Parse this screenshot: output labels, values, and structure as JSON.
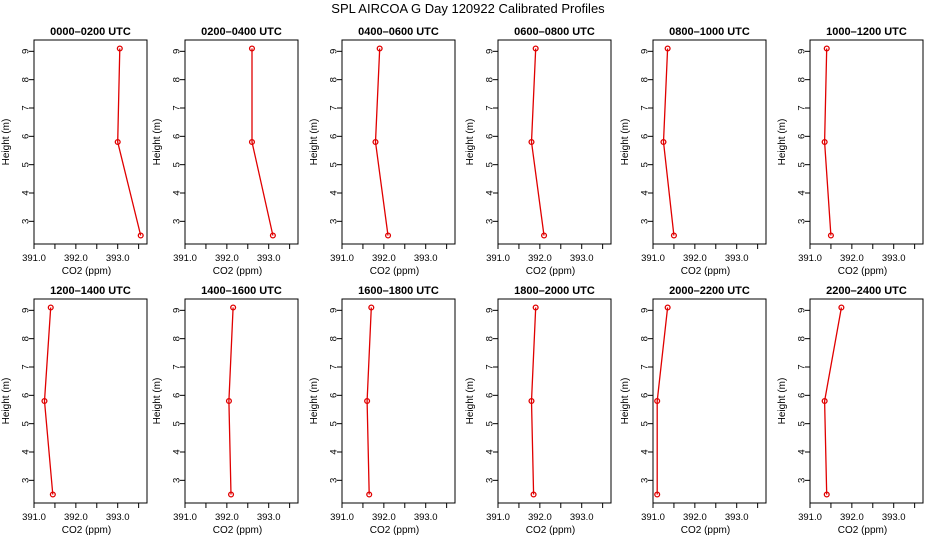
{
  "title": "SPL AIRCOA G  Day 120922  Calibrated Profiles",
  "colors": {
    "series": "#e00000",
    "axis": "#000000"
  },
  "chart_data": [
    {
      "type": "line",
      "title": "0000–0200 UTC",
      "xlabel": "CO2 (ppm)",
      "ylabel": "Height (m)",
      "xlim": [
        391.0,
        393.7
      ],
      "ylim": [
        2.2,
        9.4
      ],
      "xticks": [
        "391.0",
        "392.0",
        "393.0"
      ],
      "yticks": [
        "3",
        "4",
        "5",
        "6",
        "7",
        "8",
        "9"
      ],
      "points": [
        {
          "x": 393.05,
          "y": 9.1
        },
        {
          "x": 393.0,
          "y": 5.8
        },
        {
          "x": 393.55,
          "y": 2.5
        }
      ]
    },
    {
      "type": "line",
      "title": "0200–0400 UTC",
      "xlabel": "CO2 (ppm)",
      "ylabel": "Height (m)",
      "xlim": [
        391.0,
        393.7
      ],
      "ylim": [
        2.2,
        9.4
      ],
      "xticks": [
        "391.0",
        "392.0",
        "393.0"
      ],
      "yticks": [
        "3",
        "4",
        "5",
        "6",
        "7",
        "8",
        "9"
      ],
      "points": [
        {
          "x": 392.6,
          "y": 9.1
        },
        {
          "x": 392.6,
          "y": 5.8
        },
        {
          "x": 393.1,
          "y": 2.5
        }
      ]
    },
    {
      "type": "line",
      "title": "0400–0600 UTC",
      "xlabel": "CO2 (ppm)",
      "ylabel": "Height (m)",
      "xlim": [
        391.0,
        393.7
      ],
      "ylim": [
        2.2,
        9.4
      ],
      "xticks": [
        "391.0",
        "392.0",
        "393.0"
      ],
      "yticks": [
        "3",
        "4",
        "5",
        "6",
        "7",
        "8",
        "9"
      ],
      "points": [
        {
          "x": 391.9,
          "y": 9.1
        },
        {
          "x": 391.8,
          "y": 5.8
        },
        {
          "x": 392.1,
          "y": 2.5
        }
      ]
    },
    {
      "type": "line",
      "title": "0600–0800 UTC",
      "xlabel": "CO2 (ppm)",
      "ylabel": "Height (m)",
      "xlim": [
        391.0,
        393.7
      ],
      "ylim": [
        2.2,
        9.4
      ],
      "xticks": [
        "391.0",
        "392.0",
        "393.0"
      ],
      "yticks": [
        "3",
        "4",
        "5",
        "6",
        "7",
        "8",
        "9"
      ],
      "points": [
        {
          "x": 391.9,
          "y": 9.1
        },
        {
          "x": 391.8,
          "y": 5.8
        },
        {
          "x": 392.1,
          "y": 2.5
        }
      ]
    },
    {
      "type": "line",
      "title": "0800–1000 UTC",
      "xlabel": "CO2 (ppm)",
      "ylabel": "Height (m)",
      "xlim": [
        391.0,
        393.7
      ],
      "ylim": [
        2.2,
        9.4
      ],
      "xticks": [
        "391.0",
        "392.0",
        "393.0"
      ],
      "yticks": [
        "3",
        "4",
        "5",
        "6",
        "7",
        "8",
        "9"
      ],
      "points": [
        {
          "x": 391.35,
          "y": 9.1
        },
        {
          "x": 391.25,
          "y": 5.8
        },
        {
          "x": 391.5,
          "y": 2.5
        }
      ]
    },
    {
      "type": "line",
      "title": "1000–1200 UTC",
      "xlabel": "CO2 (ppm)",
      "ylabel": "Height (m)",
      "xlim": [
        391.0,
        393.7
      ],
      "ylim": [
        2.2,
        9.4
      ],
      "xticks": [
        "391.0",
        "392.0",
        "393.0"
      ],
      "yticks": [
        "3",
        "4",
        "5",
        "6",
        "7",
        "8",
        "9"
      ],
      "points": [
        {
          "x": 391.4,
          "y": 9.1
        },
        {
          "x": 391.35,
          "y": 5.8
        },
        {
          "x": 391.5,
          "y": 2.5
        }
      ]
    },
    {
      "type": "line",
      "title": "1200–1400 UTC",
      "xlabel": "CO2 (ppm)",
      "ylabel": "Height (m)",
      "xlim": [
        391.0,
        393.7
      ],
      "ylim": [
        2.2,
        9.4
      ],
      "xticks": [
        "391.0",
        "392.0",
        "393.0"
      ],
      "yticks": [
        "3",
        "4",
        "5",
        "6",
        "7",
        "8",
        "9"
      ],
      "points": [
        {
          "x": 391.4,
          "y": 9.1
        },
        {
          "x": 391.25,
          "y": 5.8
        },
        {
          "x": 391.45,
          "y": 2.5
        }
      ]
    },
    {
      "type": "line",
      "title": "1400–1600 UTC",
      "xlabel": "CO2 (ppm)",
      "ylabel": "Height (m)",
      "xlim": [
        391.0,
        393.7
      ],
      "ylim": [
        2.2,
        9.4
      ],
      "xticks": [
        "391.0",
        "392.0",
        "393.0"
      ],
      "yticks": [
        "3",
        "4",
        "5",
        "6",
        "7",
        "8",
        "9"
      ],
      "points": [
        {
          "x": 392.15,
          "y": 9.1
        },
        {
          "x": 392.05,
          "y": 5.8
        },
        {
          "x": 392.1,
          "y": 2.5
        }
      ]
    },
    {
      "type": "line",
      "title": "1600–1800 UTC",
      "xlabel": "CO2 (ppm)",
      "ylabel": "Height (m)",
      "xlim": [
        391.0,
        393.7
      ],
      "ylim": [
        2.2,
        9.4
      ],
      "xticks": [
        "391.0",
        "392.0",
        "393.0"
      ],
      "yticks": [
        "3",
        "4",
        "5",
        "6",
        "7",
        "8",
        "9"
      ],
      "points": [
        {
          "x": 391.7,
          "y": 9.1
        },
        {
          "x": 391.6,
          "y": 5.8
        },
        {
          "x": 391.65,
          "y": 2.5
        }
      ]
    },
    {
      "type": "line",
      "title": "1800–2000 UTC",
      "xlabel": "CO2 (ppm)",
      "ylabel": "Height (m)",
      "xlim": [
        391.0,
        393.7
      ],
      "ylim": [
        2.2,
        9.4
      ],
      "xticks": [
        "391.0",
        "392.0",
        "393.0"
      ],
      "yticks": [
        "3",
        "4",
        "5",
        "6",
        "7",
        "8",
        "9"
      ],
      "points": [
        {
          "x": 391.9,
          "y": 9.1
        },
        {
          "x": 391.8,
          "y": 5.8
        },
        {
          "x": 391.85,
          "y": 2.5
        }
      ]
    },
    {
      "type": "line",
      "title": "2000–2200 UTC",
      "xlabel": "CO2 (ppm)",
      "ylabel": "Height (m)",
      "xlim": [
        391.0,
        393.7
      ],
      "ylim": [
        2.2,
        9.4
      ],
      "xticks": [
        "391.0",
        "392.0",
        "393.0"
      ],
      "yticks": [
        "3",
        "4",
        "5",
        "6",
        "7",
        "8",
        "9"
      ],
      "points": [
        {
          "x": 391.35,
          "y": 9.1
        },
        {
          "x": 391.1,
          "y": 5.8
        },
        {
          "x": 391.1,
          "y": 2.5
        }
      ]
    },
    {
      "type": "line",
      "title": "2200–2400 UTC",
      "xlabel": "CO2 (ppm)",
      "ylabel": "Height (m)",
      "xlim": [
        391.0,
        393.7
      ],
      "ylim": [
        2.2,
        9.4
      ],
      "xticks": [
        "391.0",
        "392.0",
        "393.0"
      ],
      "yticks": [
        "3",
        "4",
        "5",
        "6",
        "7",
        "8",
        "9"
      ],
      "points": [
        {
          "x": 391.75,
          "y": 9.1
        },
        {
          "x": 391.35,
          "y": 5.8
        },
        {
          "x": 391.4,
          "y": 2.5
        }
      ]
    }
  ]
}
